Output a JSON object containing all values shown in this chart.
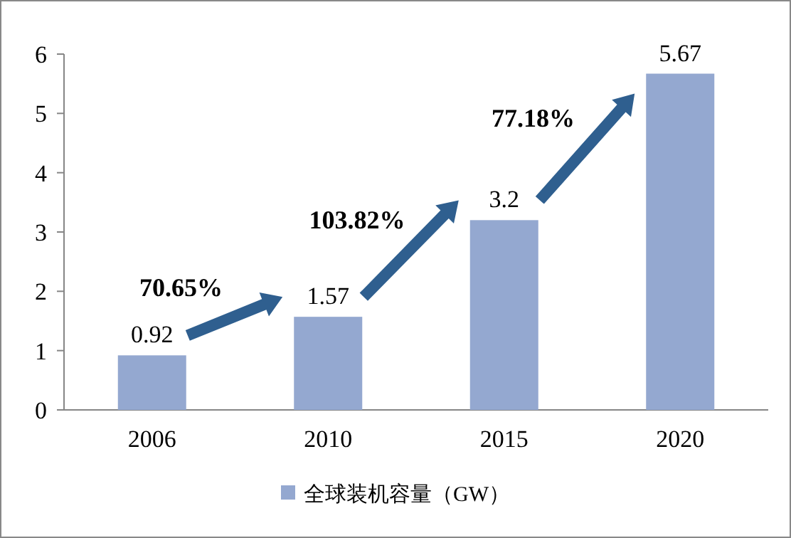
{
  "chart_data": {
    "type": "bar",
    "categories": [
      "2006",
      "2010",
      "2015",
      "2020"
    ],
    "series": [
      {
        "name": "全球装机容量（GW）",
        "color": "#94a8d0",
        "values": [
          0.92,
          1.57,
          3.2,
          5.67
        ]
      }
    ],
    "ylim": [
      0,
      6
    ],
    "yticks": [
      0,
      1,
      2,
      3,
      4,
      5,
      6
    ],
    "data_labels": true,
    "legend": "bottom",
    "grid": false,
    "annotations": [
      "70.65%",
      "103.82%",
      "77.18%"
    ]
  }
}
